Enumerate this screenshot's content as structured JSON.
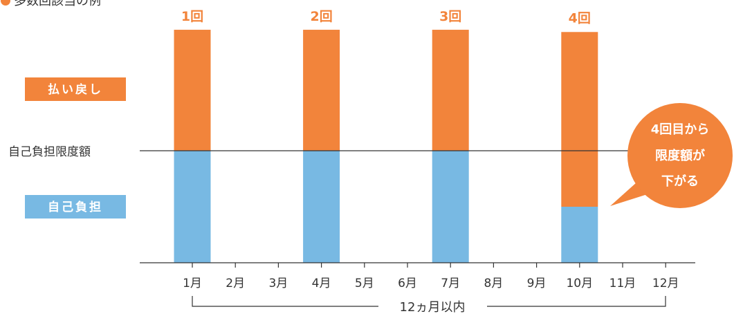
{
  "heading": "多数回該当の例",
  "legend": {
    "refund": "払い戻し",
    "self_pay": "自己負担"
  },
  "limit_line_label": "自己負担限度額",
  "period_label": "12ヵ月以内",
  "callout": {
    "lines": [
      "4回目から",
      "限度額が",
      "下がる"
    ]
  },
  "colors": {
    "refund": "#F2843B",
    "self_pay": "#78B9E3",
    "line": "#333333"
  },
  "chart_data": {
    "type": "bar",
    "stacked": true,
    "categories": [
      "1月",
      "2月",
      "3月",
      "4月",
      "5月",
      "6月",
      "7月",
      "8月",
      "9月",
      "10月",
      "11月",
      "12月"
    ],
    "series": [
      {
        "name": "自己負担",
        "values": [
          100,
          0,
          0,
          100,
          0,
          0,
          100,
          0,
          0,
          50,
          0,
          0
        ]
      },
      {
        "name": "払い戻し",
        "values": [
          108,
          0,
          0,
          108,
          0,
          0,
          108,
          0,
          0,
          156,
          0,
          0
        ]
      }
    ],
    "limit_value": 100,
    "bar_labels": [
      {
        "category": "1月",
        "text": "1回"
      },
      {
        "category": "4月",
        "text": "2回"
      },
      {
        "category": "7月",
        "text": "3回"
      },
      {
        "category": "10月",
        "text": "4回"
      }
    ]
  }
}
